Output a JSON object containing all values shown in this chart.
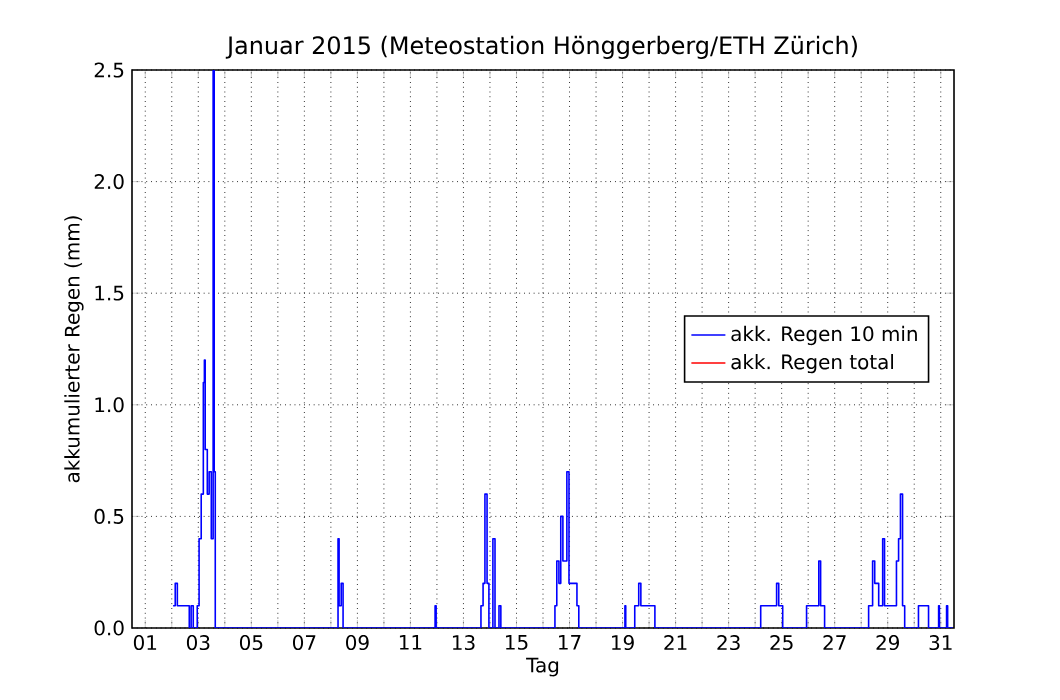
{
  "chart_data": {
    "type": "step",
    "title": "Januar 2015  (Meteostation Hönggerberg/ETH Zürich)",
    "xlabel": "Tag",
    "ylabel": "akkumulierter Regen (mm)",
    "xlim": [
      0.5,
      31.5
    ],
    "ylim": [
      0,
      2.5
    ],
    "xticks": [
      {
        "value": 1,
        "label": "01"
      },
      {
        "value": 2,
        "label": null
      },
      {
        "value": 3,
        "label": "03"
      },
      {
        "value": 4,
        "label": null
      },
      {
        "value": 5,
        "label": "05"
      },
      {
        "value": 6,
        "label": null
      },
      {
        "value": 7,
        "label": "07"
      },
      {
        "value": 8,
        "label": null
      },
      {
        "value": 9,
        "label": "09"
      },
      {
        "value": 10,
        "label": null
      },
      {
        "value": 11,
        "label": "11"
      },
      {
        "value": 12,
        "label": null
      },
      {
        "value": 13,
        "label": "13"
      },
      {
        "value": 14,
        "label": null
      },
      {
        "value": 15,
        "label": "15"
      },
      {
        "value": 16,
        "label": null
      },
      {
        "value": 17,
        "label": "17"
      },
      {
        "value": 18,
        "label": null
      },
      {
        "value": 19,
        "label": "19"
      },
      {
        "value": 20,
        "label": null
      },
      {
        "value": 21,
        "label": "21"
      },
      {
        "value": 22,
        "label": null
      },
      {
        "value": 23,
        "label": "23"
      },
      {
        "value": 24,
        "label": null
      },
      {
        "value": 25,
        "label": "25"
      },
      {
        "value": 26,
        "label": null
      },
      {
        "value": 27,
        "label": "27"
      },
      {
        "value": 28,
        "label": null
      },
      {
        "value": 29,
        "label": "29"
      },
      {
        "value": 30,
        "label": null
      },
      {
        "value": 31,
        "label": "31"
      }
    ],
    "yticks": [
      {
        "value": 0,
        "label": "0.0"
      },
      0.5,
      {
        "value": 1,
        "label": "1.0"
      },
      1.5,
      {
        "value": 2,
        "label": "2.0"
      },
      2.5
    ],
    "grid": true,
    "legend": "right",
    "series": [
      {
        "name": "akk. Regen 10 min",
        "color": "#0000ff",
        "x": [
          2.05,
          2.13,
          2.21,
          2.51,
          2.66,
          2.73,
          2.81,
          2.96,
          3.03,
          3.11,
          3.19,
          3.23,
          3.26,
          3.34,
          3.41,
          3.49,
          3.56,
          3.6,
          3.64,
          8.23,
          8.27,
          8.31,
          8.39,
          8.46,
          11.93,
          11.97,
          13.66,
          13.74,
          13.81,
          13.89,
          13.96,
          14.11,
          14.19,
          14.34,
          14.41,
          16.45,
          16.52,
          16.6,
          16.67,
          16.75,
          16.9,
          16.98,
          17.13,
          17.28,
          17.35,
          19.09,
          19.12,
          19.46,
          19.61,
          19.69,
          20.22,
          24.21,
          24.81,
          24.89,
          25.04,
          25.94,
          26.4,
          26.47,
          26.62,
          28.28,
          28.43,
          28.51,
          28.66,
          28.81,
          28.88,
          29.33,
          29.41,
          29.48,
          29.56,
          29.64,
          30.16,
          30.54,
          30.92,
          30.95,
          31.22,
          31.26,
          31.45
        ],
        "values": [
          0.1,
          0.2,
          0.1,
          0.1,
          0,
          0.1,
          0,
          0.1,
          0.4,
          0.6,
          1.1,
          1.2,
          0.8,
          0.6,
          0.7,
          0.4,
          2.5,
          0.7,
          0,
          0,
          0.4,
          0.1,
          0.2,
          0,
          0.1,
          0,
          0.1,
          0.2,
          0.6,
          0.2,
          0,
          0.4,
          0,
          0.1,
          0,
          0.1,
          0.3,
          0.2,
          0.5,
          0.3,
          0.7,
          0.2,
          0.2,
          0.1,
          0,
          0.1,
          0,
          0.1,
          0.2,
          0.1,
          0,
          0.1,
          0.2,
          0.1,
          0,
          0.1,
          0.3,
          0.1,
          0,
          0.1,
          0.3,
          0.2,
          0.1,
          0.4,
          0.1,
          0.3,
          0.4,
          0.6,
          0.1,
          0,
          0.1,
          0,
          0.1,
          0,
          0.1,
          0,
          0
        ]
      },
      {
        "name": "akk. Regen total",
        "color": "#ff0000"
      }
    ]
  }
}
